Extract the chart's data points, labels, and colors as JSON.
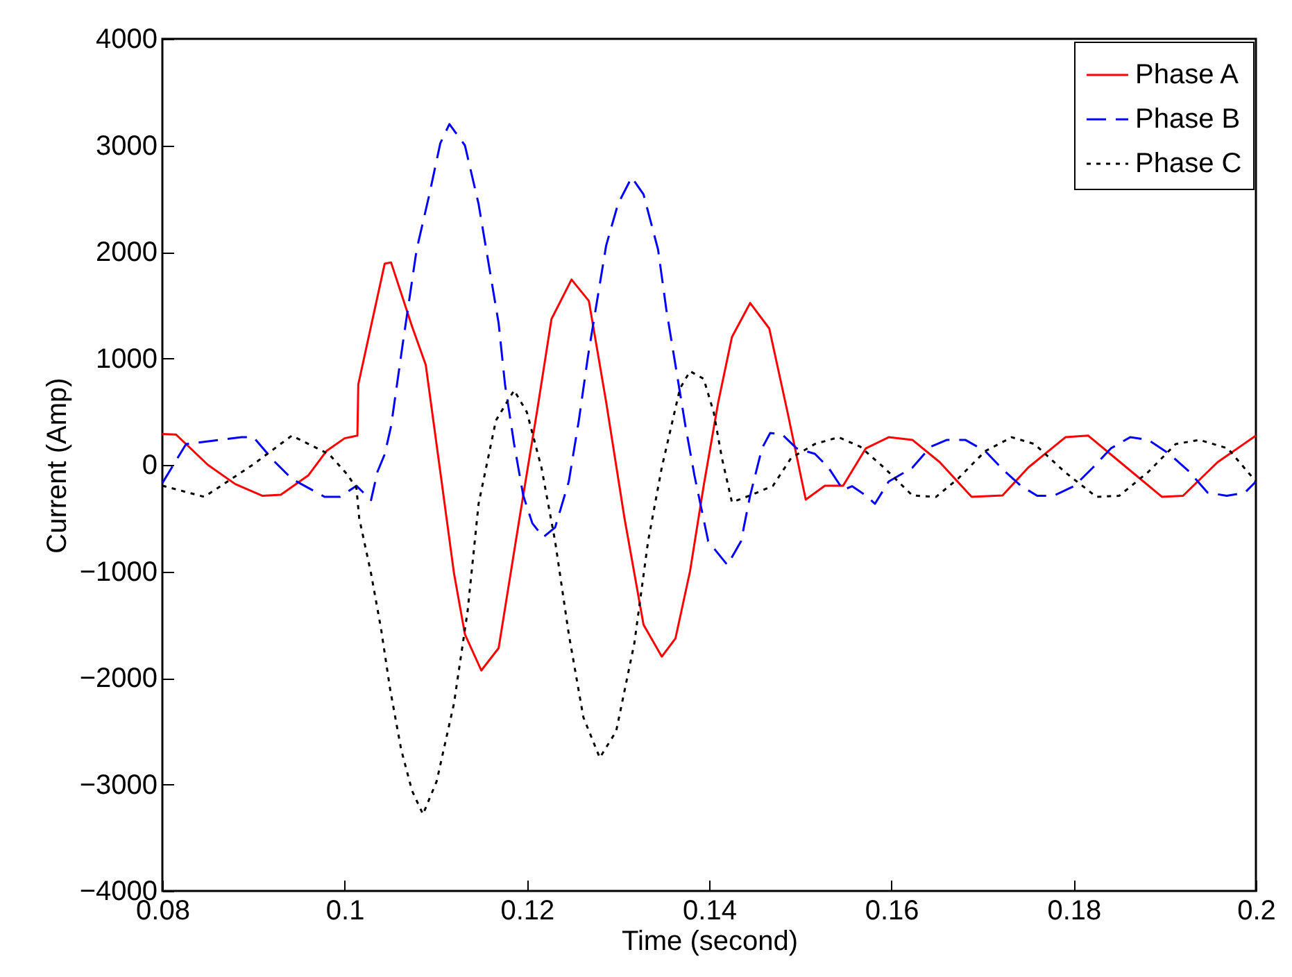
{
  "chart_data": {
    "type": "line",
    "xlabel": "Time (second)",
    "ylabel": "Current (Amp)",
    "xlim": [
      0.08,
      0.2
    ],
    "ylim": [
      -4000,
      4000
    ],
    "xticks": [
      0.08,
      0.1,
      0.12,
      0.14,
      0.16,
      0.18,
      0.2
    ],
    "yticks": [
      -4000,
      -3000,
      -2000,
      -1000,
      0,
      1000,
      2000,
      3000,
      4000
    ],
    "grid": false,
    "legend": "top right",
    "marker": "none",
    "series": [
      {
        "name": "Phase A",
        "color": "#ff0000",
        "line_style": "solid",
        "x": [
          0.08,
          0.0815,
          0.085,
          0.088,
          0.091,
          0.093,
          0.096,
          0.098,
          0.1,
          0.1014,
          0.1015,
          0.1044,
          0.1051,
          0.1074,
          0.1089,
          0.1105,
          0.112,
          0.1132,
          0.115,
          0.1169,
          0.1192,
          0.1211,
          0.1227,
          0.1249,
          0.1268,
          0.1287,
          0.1307,
          0.1328,
          0.1348,
          0.1363,
          0.1379,
          0.1394,
          0.141,
          0.1425,
          0.1445,
          0.1466,
          0.1486,
          0.1506,
          0.1527,
          0.1547,
          0.1572,
          0.1597,
          0.1623,
          0.1653,
          0.1688,
          0.1722,
          0.175,
          0.1791,
          0.1816,
          0.1851,
          0.1897,
          0.192,
          0.1958,
          0.2
        ],
        "values": [
          290,
          285,
          0,
          -180,
          -290,
          -280,
          -100,
          130,
          250,
          275,
          756,
          1890,
          1900,
          1300,
          940,
          -65,
          -1017,
          -1590,
          -1930,
          -1720,
          -495,
          495,
          1370,
          1740,
          1540,
          590,
          -495,
          -1500,
          -1800,
          -1630,
          -1000,
          -196,
          590,
          1200,
          1520,
          1280,
          495,
          -326,
          -196,
          -196,
          156,
          260,
          235,
          26,
          -300,
          -287,
          -26,
          260,
          275,
          26,
          -300,
          -290,
          26,
          275
        ]
      },
      {
        "name": "Phase B",
        "color": "#0000ff",
        "line_style": "dashed",
        "x": [
          0.08,
          0.0826,
          0.0887,
          0.09,
          0.0922,
          0.0942,
          0.0978,
          0.0995,
          0.1013,
          0.1029,
          0.1036,
          0.1044,
          0.1051,
          0.1064,
          0.1079,
          0.1093,
          0.1105,
          0.1115,
          0.1132,
          0.1147,
          0.1158,
          0.1169,
          0.1176,
          0.1186,
          0.1196,
          0.1206,
          0.1218,
          0.1231,
          0.1246,
          0.1257,
          0.1267,
          0.1277,
          0.1287,
          0.13,
          0.1315,
          0.1328,
          0.1344,
          0.1353,
          0.1364,
          0.1374,
          0.1384,
          0.1399,
          0.142,
          0.1435,
          0.1445,
          0.1458,
          0.1467,
          0.148,
          0.1496,
          0.1516,
          0.1531,
          0.1547,
          0.1557,
          0.1572,
          0.1582,
          0.1597,
          0.1623,
          0.1643,
          0.1661,
          0.1681,
          0.1703,
          0.1722,
          0.1742,
          0.176,
          0.1778,
          0.1801,
          0.1821,
          0.1841,
          0.1862,
          0.1882,
          0.1905,
          0.1927,
          0.1947,
          0.1968,
          0.1988,
          0.2
        ],
        "values": [
          -170,
          196,
          260,
          260,
          40,
          -130,
          -300,
          -300,
          -196,
          -330,
          -65,
          100,
          365,
          1150,
          2020,
          2540,
          3020,
          3200,
          3000,
          2450,
          1890,
          1330,
          756,
          196,
          -287,
          -548,
          -678,
          -587,
          -156,
          417,
          1017,
          1540,
          2060,
          2450,
          2700,
          2540,
          2020,
          1460,
          887,
          365,
          -104,
          -717,
          -940,
          -717,
          -287,
          156,
          300,
          287,
          156,
          104,
          -26,
          -235,
          -200,
          -287,
          -365,
          -156,
          -26,
          170,
          235,
          235,
          130,
          -40,
          -196,
          -290,
          -290,
          -196,
          -26,
          156,
          260,
          235,
          104,
          -65,
          -260,
          -290,
          -260,
          -156
        ]
      },
      {
        "name": "Phase C",
        "color": "#000000",
        "line_style": "dotted",
        "x": [
          0.08,
          0.0846,
          0.0899,
          0.0942,
          0.0983,
          0.1003,
          0.1013,
          0.1016,
          0.1029,
          0.104,
          0.105,
          0.1062,
          0.1074,
          0.1086,
          0.1101,
          0.112,
          0.1135,
          0.1147,
          0.1166,
          0.1186,
          0.12,
          0.1216,
          0.1231,
          0.1246,
          0.1262,
          0.128,
          0.1298,
          0.1318,
          0.1333,
          0.1348,
          0.1368,
          0.1379,
          0.1394,
          0.1405,
          0.1414,
          0.1425,
          0.1445,
          0.147,
          0.149,
          0.1516,
          0.1542,
          0.1566,
          0.1592,
          0.1623,
          0.1649,
          0.1673,
          0.1703,
          0.1732,
          0.1757,
          0.179,
          0.1825,
          0.185,
          0.1882,
          0.1912,
          0.1938,
          0.1969,
          0.2
        ],
        "values": [
          -195,
          -300,
          0,
          275,
          100,
          -90,
          -220,
          -500,
          -1020,
          -1540,
          -2110,
          -2670,
          -3060,
          -3280,
          -2970,
          -2240,
          -1370,
          -365,
          417,
          700,
          495,
          -26,
          -717,
          -1590,
          -2370,
          -2750,
          -2500,
          -1670,
          -717,
          -26,
          717,
          880,
          808,
          495,
          65,
          -350,
          -287,
          -196,
          65,
          196,
          260,
          170,
          -26,
          -287,
          -300,
          -130,
          130,
          260,
          196,
          -65,
          -300,
          -290,
          -65,
          196,
          235,
          156,
          -156
        ]
      }
    ]
  }
}
